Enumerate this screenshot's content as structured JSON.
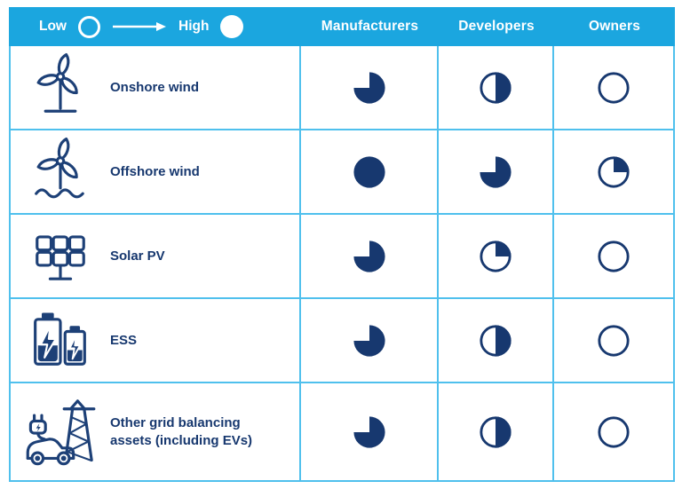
{
  "figure": {
    "legend": {
      "low_label": "Low",
      "high_label": "High"
    },
    "columns": [
      {
        "label": "Manufacturers"
      },
      {
        "label": "Developers"
      },
      {
        "label": "Owners"
      }
    ],
    "rows": [
      {
        "label": "Onshore wind",
        "icon": "onshore-wind-icon",
        "values": [
          0.75,
          0.5,
          0
        ]
      },
      {
        "label": "Offshore wind",
        "icon": "offshore-wind-icon",
        "values": [
          1,
          0.75,
          0.25
        ]
      },
      {
        "label": "Solar PV",
        "icon": "solar-pv-icon",
        "values": [
          0.75,
          0.25,
          0
        ]
      },
      {
        "label": "ESS",
        "icon": "ess-battery-icon",
        "values": [
          0.75,
          0.5,
          0
        ]
      },
      {
        "label": "Other grid balancing assets (including EVs)",
        "icon": "grid-assets-ev-icon",
        "values": [
          0.75,
          0.5,
          0
        ]
      }
    ],
    "colors": {
      "header_cyan": "#1BA6DF",
      "grid_blue": "#4FC0ED",
      "navy": "#17386F",
      "icon_navy": "#1D4077",
      "white": "#FFFFFF"
    }
  },
  "chart_data": {
    "type": "table",
    "legend": {
      "low": "Low",
      "high": "High",
      "min": 0,
      "max": 1
    },
    "columns": [
      "Manufacturers",
      "Developers",
      "Owners"
    ],
    "rows": [
      "Onshore wind",
      "Offshore wind",
      "Solar PV",
      "ESS",
      "Other grid balancing assets (including EVs)"
    ],
    "values_fraction_filled": [
      [
        0.75,
        0.5,
        0.0
      ],
      [
        1.0,
        0.75,
        0.25
      ],
      [
        0.75,
        0.25,
        0.0
      ],
      [
        0.75,
        0.5,
        0.0
      ],
      [
        0.75,
        0.5,
        0.0
      ]
    ]
  }
}
